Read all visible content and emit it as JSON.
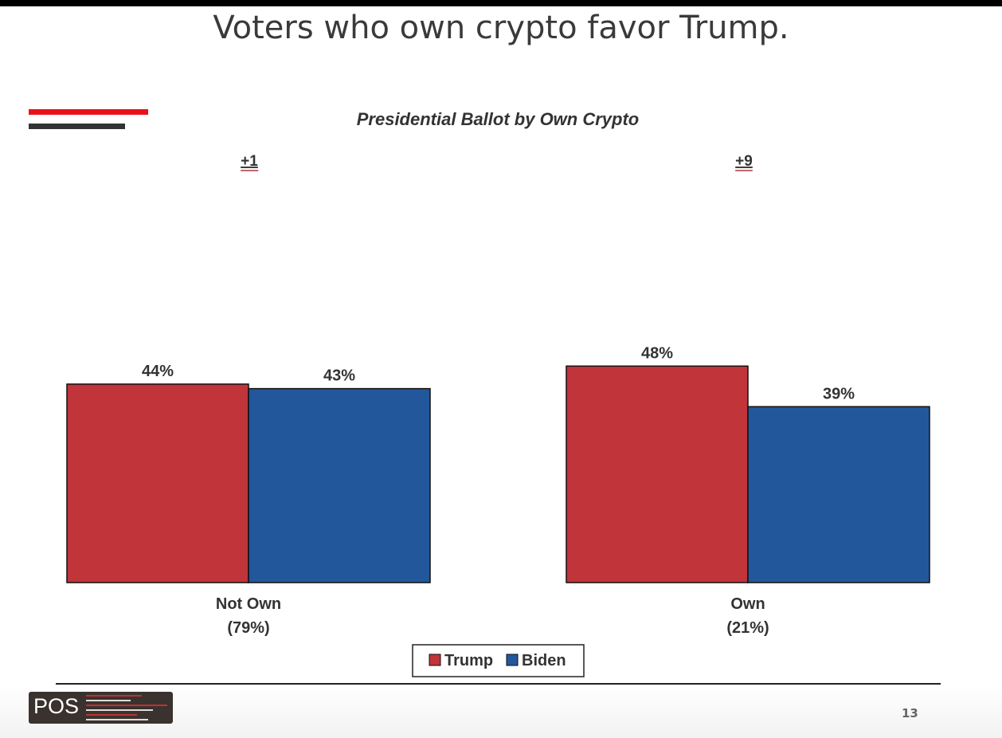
{
  "title": "Voters who own crypto favor Trump.",
  "page_number": "13",
  "logo_text": "POS",
  "chart_data": {
    "type": "bar",
    "title": "Presidential Ballot by Own Crypto",
    "categories": [
      "Not Own",
      "Own"
    ],
    "category_sublabels": [
      "(79%)",
      "(21%)"
    ],
    "margins": [
      "+1",
      "+9"
    ],
    "series": [
      {
        "name": "Trump",
        "values": [
          44,
          48
        ],
        "color": "#c0343a"
      },
      {
        "name": "Biden",
        "values": [
          43,
          39
        ],
        "color": "#23579b"
      }
    ],
    "value_suffix": "%",
    "ylim": [
      0,
      100
    ],
    "grid": false,
    "legend": "bottom",
    "margin_color": "#b0353a"
  }
}
